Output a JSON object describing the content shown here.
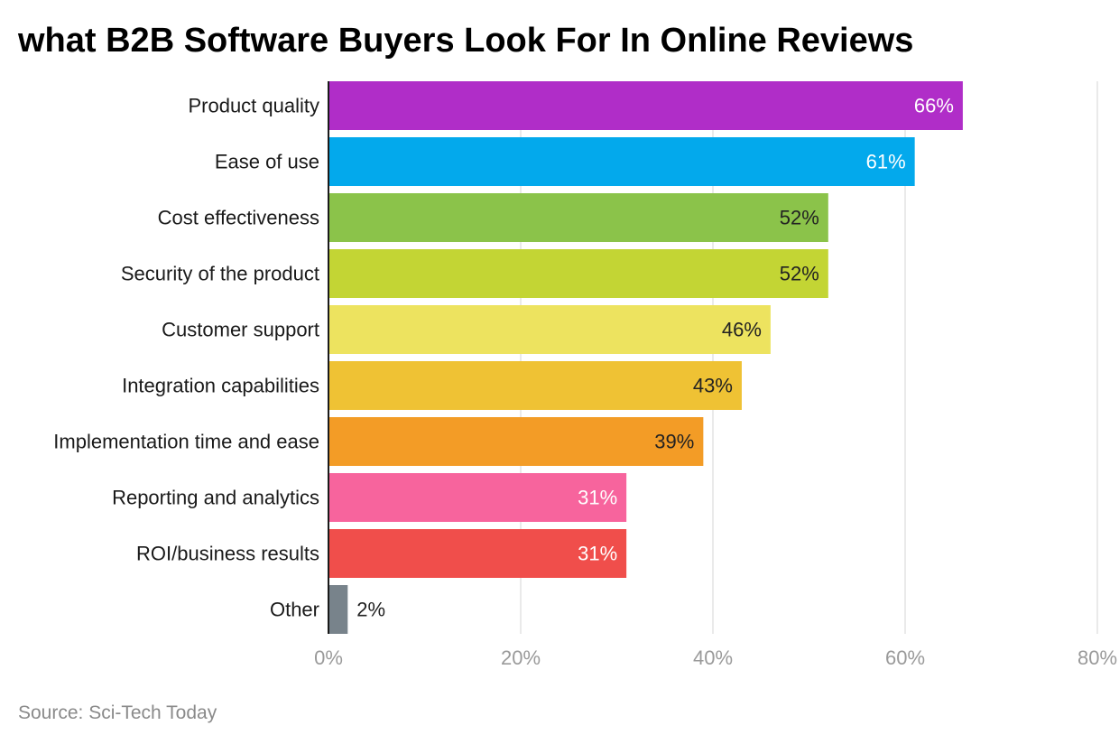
{
  "chart_data": {
    "type": "bar",
    "orientation": "horizontal",
    "title": "what B2B Software Buyers Look For In Online Reviews",
    "categories": [
      "Product quality",
      "Ease of use",
      "Cost effectiveness",
      "Security of the product",
      "Customer support",
      "Integration capabilities",
      "Implementation time and ease",
      "Reporting and analytics",
      "ROI/business results",
      "Other"
    ],
    "values": [
      66,
      61,
      52,
      52,
      46,
      43,
      39,
      31,
      31,
      2
    ],
    "value_labels": [
      "66%",
      "61%",
      "52%",
      "52%",
      "46%",
      "43%",
      "39%",
      "31%",
      "31%",
      "2%"
    ],
    "colors": [
      "#b02dc8",
      "#03a9ec",
      "#8bc34a",
      "#c3d534",
      "#ede35f",
      "#efc234",
      "#f39c26",
      "#f7649d",
      "#f04e4b",
      "#78838b"
    ],
    "value_label_colors": [
      "#ffffff",
      "#ffffff",
      "#222222",
      "#222222",
      "#222222",
      "#222222",
      "#222222",
      "#ffffff",
      "#ffffff",
      "#222222"
    ],
    "xlim": [
      0,
      80
    ],
    "x_ticks": [
      0,
      20,
      40,
      60,
      80
    ],
    "x_tick_labels": [
      "0%",
      "20%",
      "40%",
      "60%",
      "80%"
    ],
    "grid": true,
    "legend": "none"
  },
  "source": "Source: Sci-Tech Today"
}
